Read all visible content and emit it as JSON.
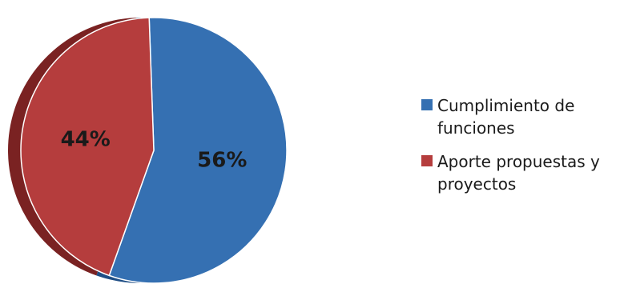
{
  "chart_data": {
    "type": "pie",
    "title": "",
    "slices": [
      {
        "label": "Cumplimiento de funciones",
        "value": 56,
        "display": "56%",
        "color": "#3570b2",
        "side_color": "#1f4e85"
      },
      {
        "label": "Aporte propuestas y proyectos",
        "value": 44,
        "display": "44%",
        "color": "#b53d3d",
        "side_color": "#7a2222"
      }
    ],
    "style": "3d-tilted",
    "legend_position": "right"
  },
  "legend": {
    "items": [
      {
        "label": "Cumplimiento de funciones",
        "color": "#3570b2"
      },
      {
        "label": "Aporte propuestas y proyectos",
        "color": "#b53d3d"
      }
    ]
  }
}
